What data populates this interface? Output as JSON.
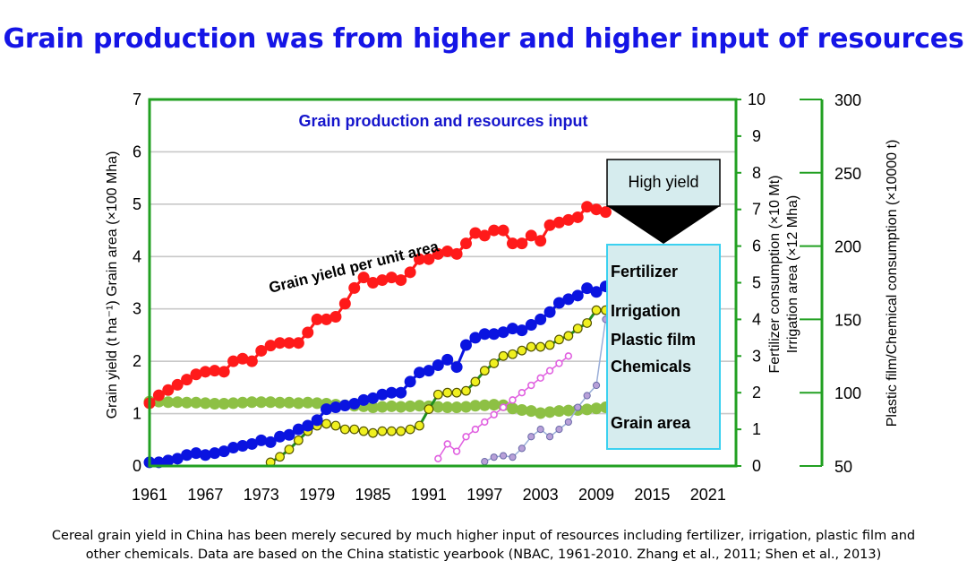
{
  "slide": {
    "title": "Grain production was from higher and higher input of resources",
    "caption_line1": "Cereal grain yield in China has been merely secured by much higher input of resources including fertilizer, irrigation, plastic film and",
    "caption_line2": "other chemicals. Data are based on the China statistic yearbook (NBAC, 1961-2010.    Zhang et al., 2011;  Shen et al., 2013)"
  },
  "chart_data": {
    "type": "line",
    "title": "Grain production and resources input",
    "xlabel": "",
    "x_range": [
      1961,
      2024
    ],
    "x_ticks": [
      "1961",
      "1967",
      "1973",
      "1979",
      "1985",
      "1991",
      "1997",
      "2003",
      "2009",
      "2015",
      "2021"
    ],
    "left_axis": {
      "label": "Grain yield (t ha⁻¹)  Grain area (×100 Mha)",
      "ylim": [
        0,
        7
      ],
      "ticks": [
        "0",
        "1",
        "2",
        "3",
        "4",
        "5",
        "6",
        "7"
      ]
    },
    "right_axis_1": {
      "label_line1": "Fertilizer consumption (×10 Mt)",
      "label_line2": "Irrigation area (×12 Mha)",
      "ylim": [
        0,
        10
      ],
      "ticks": [
        "0",
        "1",
        "2",
        "3",
        "4",
        "5",
        "6",
        "7",
        "8",
        "9",
        "10"
      ]
    },
    "right_axis_2": {
      "label": "Plastic film/Chemical consumption (×10000 t)",
      "ylim": [
        50,
        300
      ],
      "ticks": [
        "50",
        "100",
        "150",
        "200",
        "250",
        "300"
      ]
    },
    "annotations": {
      "yield_label": "Grain yield per unit area",
      "high_yield_box": "High yield",
      "side_labels": [
        "Fertilizer",
        "Irrigation",
        "Plastic film",
        "Chemicals",
        "Grain area"
      ]
    },
    "series": [
      {
        "name": "Grain yield per unit area",
        "axis": "left",
        "color": "#ff1a1a",
        "marker": "circle",
        "x": [
          1961,
          1962,
          1963,
          1964,
          1965,
          1966,
          1967,
          1968,
          1969,
          1970,
          1971,
          1972,
          1973,
          1974,
          1975,
          1976,
          1977,
          1978,
          1979,
          1980,
          1981,
          1982,
          1983,
          1984,
          1985,
          1986,
          1987,
          1988,
          1989,
          1990,
          1991,
          1992,
          1993,
          1994,
          1995,
          1996,
          1997,
          1998,
          1999,
          2000,
          2001,
          2002,
          2003,
          2004,
          2005,
          2006,
          2007,
          2008,
          2009,
          2010
        ],
        "values": [
          1.2,
          1.35,
          1.45,
          1.55,
          1.65,
          1.75,
          1.8,
          1.82,
          1.8,
          2.0,
          2.05,
          2.0,
          2.2,
          2.3,
          2.35,
          2.35,
          2.35,
          2.55,
          2.8,
          2.8,
          2.85,
          3.1,
          3.4,
          3.6,
          3.5,
          3.55,
          3.6,
          3.55,
          3.7,
          3.95,
          3.95,
          4.05,
          4.1,
          4.05,
          4.25,
          4.45,
          4.4,
          4.5,
          4.5,
          4.25,
          4.25,
          4.4,
          4.3,
          4.6,
          4.65,
          4.7,
          4.75,
          4.95,
          4.9,
          4.85
        ]
      },
      {
        "name": "Fertilizer",
        "axis": "right1",
        "color": "#0a14e0",
        "marker": "circle",
        "x": [
          1961,
          1962,
          1963,
          1964,
          1965,
          1966,
          1967,
          1968,
          1969,
          1970,
          1971,
          1972,
          1973,
          1974,
          1975,
          1976,
          1977,
          1978,
          1979,
          1980,
          1981,
          1982,
          1983,
          1984,
          1985,
          1986,
          1987,
          1988,
          1989,
          1990,
          1991,
          1992,
          1993,
          1994,
          1995,
          1996,
          1997,
          1998,
          1999,
          2000,
          2001,
          2002,
          2003,
          2004,
          2005,
          2006,
          2007,
          2008,
          2009,
          2010
        ],
        "values": [
          0.1,
          0.1,
          0.15,
          0.2,
          0.3,
          0.35,
          0.3,
          0.35,
          0.4,
          0.5,
          0.55,
          0.6,
          0.7,
          0.65,
          0.8,
          0.85,
          1.0,
          1.1,
          1.25,
          1.55,
          1.6,
          1.65,
          1.7,
          1.8,
          1.85,
          1.95,
          2.0,
          2.0,
          2.3,
          2.55,
          2.6,
          2.75,
          2.9,
          2.7,
          3.3,
          3.5,
          3.6,
          3.6,
          3.65,
          3.75,
          3.7,
          3.85,
          4.0,
          4.2,
          4.45,
          4.55,
          4.65,
          4.85,
          4.75,
          4.9
        ]
      },
      {
        "name": "Grain area",
        "axis": "left",
        "color": "#8dc044",
        "marker": "circle",
        "x": [
          1961,
          1962,
          1963,
          1964,
          1965,
          1966,
          1967,
          1968,
          1969,
          1970,
          1971,
          1972,
          1973,
          1974,
          1975,
          1976,
          1977,
          1978,
          1979,
          1980,
          1981,
          1982,
          1983,
          1984,
          1985,
          1986,
          1987,
          1988,
          1989,
          1990,
          1991,
          1992,
          1993,
          1994,
          1995,
          1996,
          1997,
          1998,
          1999,
          2000,
          2001,
          2002,
          2003,
          2004,
          2005,
          2006,
          2007,
          2008,
          2009,
          2010
        ],
        "values": [
          1.23,
          1.23,
          1.22,
          1.22,
          1.21,
          1.21,
          1.2,
          1.19,
          1.19,
          1.2,
          1.21,
          1.22,
          1.22,
          1.22,
          1.21,
          1.21,
          1.2,
          1.21,
          1.2,
          1.19,
          1.17,
          1.16,
          1.15,
          1.14,
          1.12,
          1.13,
          1.14,
          1.13,
          1.14,
          1.15,
          1.14,
          1.13,
          1.12,
          1.12,
          1.13,
          1.15,
          1.16,
          1.17,
          1.16,
          1.1,
          1.07,
          1.05,
          1.01,
          1.03,
          1.05,
          1.06,
          1.07,
          1.08,
          1.1,
          1.12
        ]
      },
      {
        "name": "Irrigation",
        "axis": "right1",
        "color": "#f0f020",
        "line_color": "#1f8f1f",
        "marker": "circle",
        "x": [
          1974,
          1975,
          1976,
          1977,
          1978,
          1979,
          1980,
          1981,
          1982,
          1983,
          1984,
          1985,
          1986,
          1987,
          1988,
          1989,
          1990,
          1991,
          1992,
          1993,
          1994,
          1995,
          1996,
          1997,
          1998,
          1999,
          2000,
          2001,
          2002,
          2003,
          2004,
          2005,
          2006,
          2007,
          2008,
          2009,
          2010
        ],
        "values": [
          0.1,
          0.25,
          0.45,
          0.7,
          0.95,
          1.1,
          1.15,
          1.1,
          1.0,
          1.0,
          0.95,
          0.9,
          0.95,
          0.95,
          0.95,
          1.0,
          1.1,
          1.55,
          1.95,
          2.0,
          2.0,
          2.05,
          2.3,
          2.6,
          2.8,
          3.0,
          3.05,
          3.15,
          3.25,
          3.25,
          3.3,
          3.45,
          3.55,
          3.75,
          3.9,
          4.25,
          4.25
        ]
      },
      {
        "name": "Plastic film",
        "axis": "right2",
        "color": "#e060e0",
        "marker": "circle",
        "x": [
          1992,
          1993,
          1994,
          1995,
          1996,
          1997,
          1998,
          1999,
          2000,
          2001,
          2002,
          2003,
          2004,
          2005,
          2006
        ],
        "values": [
          55,
          65,
          60,
          70,
          75,
          80,
          85,
          90,
          95,
          100,
          105,
          110,
          115,
          120,
          125
        ]
      },
      {
        "name": "Chemicals",
        "axis": "right2",
        "color": "#9aaed8",
        "marker_fill": "#b8a0d8",
        "marker": "circle",
        "x": [
          1997,
          1998,
          1999,
          2000,
          2001,
          2002,
          2003,
          2004,
          2005,
          2006,
          2007,
          2008,
          2009,
          2010
        ],
        "values": [
          53,
          56,
          57,
          56,
          62,
          70,
          75,
          70,
          75,
          80,
          90,
          98,
          105,
          150
        ]
      }
    ]
  }
}
